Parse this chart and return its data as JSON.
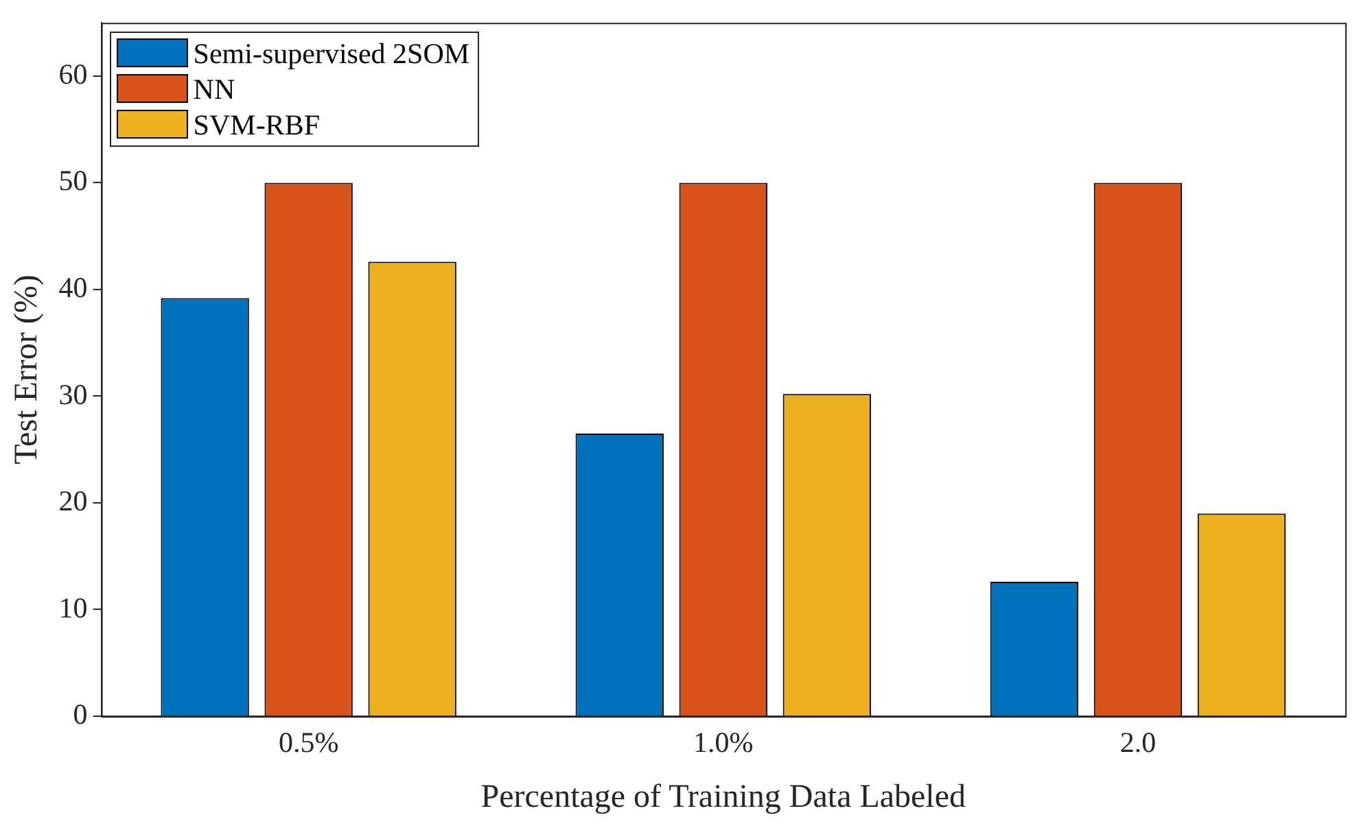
{
  "chart_data": {
    "type": "bar",
    "xlabel": "Percentage of Training Data Labeled",
    "ylabel": "Test Error (%)",
    "categories": [
      "0.5%",
      "1.0%",
      "2.0"
    ],
    "series": [
      {
        "name": "Semi-supervised 2SOM",
        "color": "#0072bd",
        "values": [
          39.2,
          26.5,
          12.6
        ]
      },
      {
        "name": "NN",
        "color": "#d95319",
        "values": [
          50,
          50,
          50
        ]
      },
      {
        "name": "SVM-RBF",
        "color": "#edb120",
        "values": [
          42.6,
          30.2,
          19.0
        ]
      }
    ],
    "ylim": [
      0,
      65
    ],
    "yticks": [
      0,
      10,
      20,
      30,
      40,
      50,
      60
    ],
    "grid": false,
    "legend": "top left"
  }
}
